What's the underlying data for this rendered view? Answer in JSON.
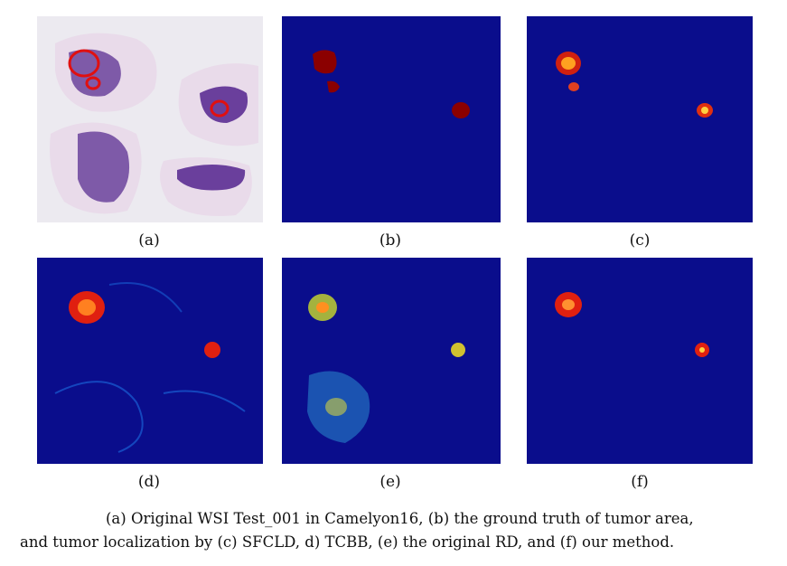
{
  "panels": [
    {
      "id": "a",
      "label": "(a)"
    },
    {
      "id": "b",
      "label": "(b)"
    },
    {
      "id": "c",
      "label": "(c)"
    },
    {
      "id": "d",
      "label": "(d)"
    },
    {
      "id": "e",
      "label": "(e)"
    },
    {
      "id": "f",
      "label": "(f)"
    }
  ],
  "caption": {
    "line1": "(a) Original WSI Test_001 in Camelyon16, (b) the ground truth of tumor area,",
    "line2": "and tumor localization by (c) SFCLD, d) TCBB, (e) the original RD, and (f) our method."
  },
  "colors": {
    "heatmap_bg": "#0a0d8c",
    "tumor_red": "#8b0000",
    "tissue_purple": "#6a3f9c",
    "slide_bg": "#ececf2"
  }
}
